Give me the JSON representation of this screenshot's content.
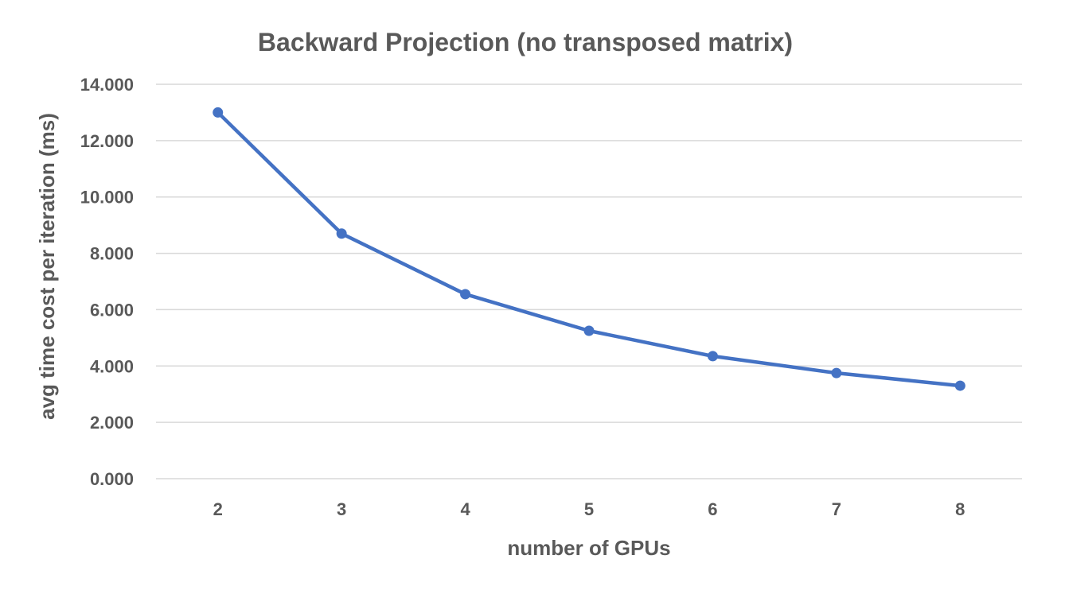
{
  "chart_data": {
    "type": "line",
    "title": "Backward Projection (no transposed matrix)",
    "xlabel": "number of GPUs",
    "ylabel": "avg time cost per iteration (ms)",
    "categories": [
      "2",
      "3",
      "4",
      "5",
      "6",
      "7",
      "8"
    ],
    "series": [
      {
        "values": [
          13.0,
          8.7,
          6.55,
          5.25,
          4.35,
          3.75,
          3.3
        ]
      }
    ],
    "ylim": [
      0,
      14
    ],
    "yticks": [
      0,
      2,
      4,
      6,
      8,
      10,
      12,
      14
    ],
    "ytick_labels": [
      "0.000",
      "2.000",
      "4.000",
      "6.000",
      "8.000",
      "10.000",
      "12.000",
      "14.000"
    ],
    "grid": "horizontal",
    "legend": "none",
    "colors": {
      "series": "#4472c4",
      "text": "#595959",
      "grid": "#d9d9d9"
    }
  }
}
